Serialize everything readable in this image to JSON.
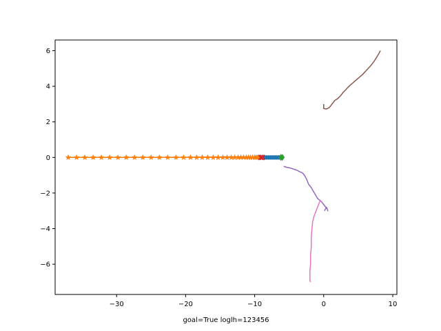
{
  "chart_data": {
    "type": "line",
    "title": "",
    "xlabel": "goal=True loglh=123456",
    "ylabel": "",
    "xlim": [
      -38.9,
      10.6
    ],
    "ylim": [
      -7.7,
      6.6
    ],
    "grid": false,
    "legend": "none",
    "xticks": [
      -30,
      -20,
      -10,
      0,
      10
    ],
    "xtick_labels": [
      "−30",
      "−20",
      "−10",
      "0",
      "10"
    ],
    "yticks": [
      -6,
      -4,
      -2,
      0,
      2,
      4,
      6
    ],
    "ytick_labels": [
      "−6",
      "−4",
      "−2",
      "0",
      "2",
      "4",
      "6"
    ],
    "series": [
      {
        "color": "#ff7f0e",
        "marker": "star",
        "x": [
          -37.0,
          -35.8,
          -34.6,
          -33.4,
          -32.2,
          -31.0,
          -29.8,
          -28.6,
          -27.4,
          -26.2,
          -25.0,
          -23.8,
          -22.6,
          -21.4,
          -20.3,
          -19.3,
          -18.4,
          -17.6,
          -16.8,
          -16.0,
          -15.3,
          -14.6,
          -14.0,
          -13.4,
          -12.9,
          -12.4,
          -12.0,
          -11.6,
          -11.2,
          -10.9,
          -10.6,
          -10.3,
          -10.0,
          -9.8,
          -9.6,
          -9.4,
          -9.2,
          -9.0
        ],
        "y": [
          0,
          0,
          0,
          0,
          0,
          0,
          0,
          0,
          0,
          0,
          0,
          0,
          0,
          0,
          0,
          0,
          0,
          0,
          0,
          0,
          0,
          0,
          0,
          0,
          0,
          0,
          0,
          0,
          0,
          0,
          0,
          0,
          0,
          0,
          0,
          0,
          0,
          0
        ]
      },
      {
        "color": "#1f77b4",
        "marker": "circle",
        "x": [
          -8.6,
          -8.3,
          -8.0,
          -7.7,
          -7.4,
          -7.1,
          -6.8,
          -6.5,
          -6.2
        ],
        "y": [
          0,
          0,
          0,
          0,
          0,
          0,
          0,
          0,
          0
        ]
      },
      {
        "color": "#d62728",
        "marker": "x",
        "x": [
          -9.1,
          -8.9
        ],
        "y": [
          0,
          0
        ]
      },
      {
        "color": "#2ca02c",
        "marker": "diamond",
        "x": [
          -6.2,
          -6.0
        ],
        "y": [
          0,
          0
        ]
      },
      {
        "color": "#9467bd",
        "marker": "none",
        "x": [
          -5.8,
          -5.4,
          -4.8,
          -4.0,
          -3.5,
          -3.2,
          -3.0,
          -2.8,
          -2.5,
          -2.2,
          -1.8,
          -1.5,
          -1.2,
          -0.9,
          -0.6,
          -0.3,
          -0.1,
          0.1,
          0.3,
          0.5,
          0.6,
          0.4,
          0.1
        ],
        "y": [
          -0.5,
          -0.55,
          -0.6,
          -0.7,
          -0.8,
          -0.85,
          -0.9,
          -1.0,
          -1.2,
          -1.5,
          -1.7,
          -1.9,
          -2.1,
          -2.3,
          -2.4,
          -2.5,
          -2.6,
          -2.7,
          -2.8,
          -2.9,
          -3.0,
          -2.8,
          -3.0
        ]
      },
      {
        "color": "#e377c2",
        "marker": "none",
        "x": [
          -0.4,
          -0.6,
          -0.8,
          -1.0,
          -1.2,
          -1.4,
          -1.6,
          -1.7,
          -1.8,
          -1.8,
          -1.9,
          -1.9,
          -2.0,
          -2.0,
          -2.0,
          -1.9
        ],
        "y": [
          -2.4,
          -2.5,
          -2.7,
          -2.9,
          -3.1,
          -3.3,
          -3.6,
          -4.0,
          -4.5,
          -5.0,
          -5.5,
          -6.0,
          -6.4,
          -6.7,
          -6.9,
          -7.0
        ]
      },
      {
        "color": "#8c564b",
        "marker": "none",
        "x": [
          0.0,
          0.0,
          0.4,
          0.8,
          1.2,
          1.6,
          2.0,
          2.4,
          2.8,
          3.3,
          3.8,
          4.4,
          5.0,
          5.6,
          6.2,
          6.8,
          7.3,
          7.7,
          8.0,
          8.2
        ],
        "y": [
          3.0,
          2.75,
          2.72,
          2.8,
          3.0,
          3.2,
          3.3,
          3.45,
          3.65,
          3.85,
          4.05,
          4.25,
          4.45,
          4.65,
          4.9,
          5.15,
          5.4,
          5.65,
          5.85,
          6.0
        ]
      }
    ]
  }
}
